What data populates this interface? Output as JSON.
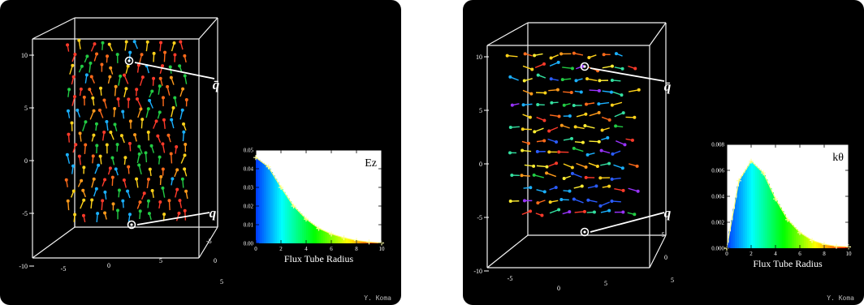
{
  "panels": [
    {
      "id": "left",
      "field": "Ez",
      "charge_top": "q̄",
      "charge_bottom": "q",
      "credit": "Y. Koma",
      "axis_ticks_vertical": [
        "10",
        "5",
        "0",
        "-5",
        "-10"
      ],
      "axis_ticks_front": [
        "-5",
        "0",
        "5"
      ],
      "axis_ticks_side": [
        "-5",
        "0",
        "5"
      ],
      "chart_data": {
        "type": "bar",
        "title": "Ez",
        "xlabel": "Flux Tube Radius",
        "ylabel": "",
        "xlim": [
          0,
          10
        ],
        "ylim": [
          0,
          0.05
        ],
        "xticks": [
          "0",
          "2",
          "4",
          "6",
          "8",
          "10"
        ],
        "yticks": [
          "0.00",
          "0.01",
          "0.02",
          "0.03",
          "0.04",
          "0.05"
        ],
        "x": [
          0,
          1,
          2,
          3,
          4,
          5,
          6,
          7,
          8,
          9,
          10
        ],
        "values": [
          0.046,
          0.041,
          0.03,
          0.02,
          0.013,
          0.008,
          0.005,
          0.003,
          0.0015,
          0.0007,
          0.0002
        ],
        "colormap": "rainbow"
      }
    },
    {
      "id": "right",
      "field": "kθ",
      "charge_top": "q̄",
      "charge_bottom": "q",
      "credit": "Y. Koma",
      "axis_ticks_vertical": [
        "10",
        "5",
        "0",
        "-5",
        "-10"
      ],
      "axis_ticks_front": [
        "-5",
        "0",
        "5"
      ],
      "axis_ticks_side": [
        "-5",
        "0",
        "5"
      ],
      "chart_data": {
        "type": "bar",
        "title": "kθ",
        "xlabel": "Flux Tube Radius",
        "ylabel": "",
        "xlim": [
          0,
          10
        ],
        "ylim": [
          0,
          0.008
        ],
        "xticks": [
          "0",
          "2",
          "4",
          "6",
          "8",
          "10"
        ],
        "yticks": [
          "0.000",
          "0.002",
          "0.004",
          "0.006",
          "0.008"
        ],
        "x": [
          0,
          1,
          2,
          3,
          4,
          5,
          6,
          7,
          8,
          9,
          10
        ],
        "values": [
          0,
          0.0052,
          0.0067,
          0.0058,
          0.0038,
          0.0022,
          0.0012,
          0.0006,
          0.0003,
          0.00015,
          0.0001
        ],
        "colormap": "rainbow"
      }
    }
  ]
}
